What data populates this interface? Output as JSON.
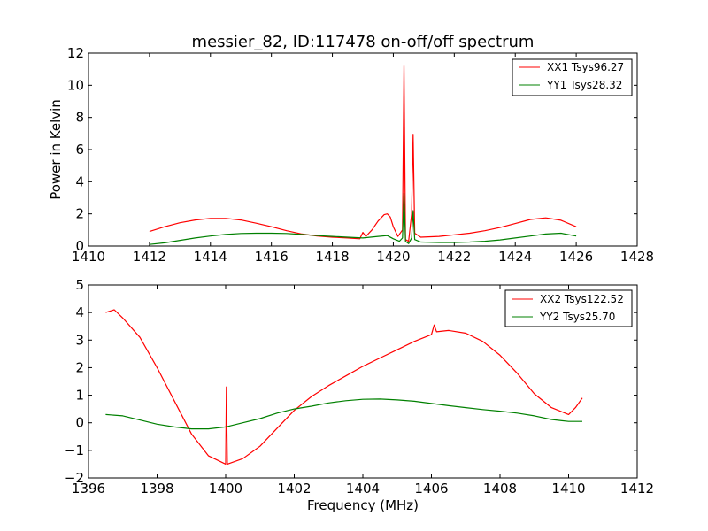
{
  "chart_data": [
    {
      "type": "line",
      "title": "messier_82, ID:117478 on-off/off spectrum",
      "xlabel": "",
      "ylabel": "Power in Kelvin",
      "xlim": [
        1410,
        1428
      ],
      "ylim": [
        0,
        12
      ],
      "xticks": [
        1410,
        1412,
        1414,
        1416,
        1418,
        1420,
        1422,
        1424,
        1426,
        1428
      ],
      "yticks": [
        0,
        2,
        4,
        6,
        8,
        10,
        12
      ],
      "grid": false,
      "legend": "top-right",
      "series": [
        {
          "name": "XX1 Tsys96.27",
          "color": "#ff0000",
          "points": [
            [
              1412.0,
              0.9
            ],
            [
              1412.5,
              1.2
            ],
            [
              1413.0,
              1.45
            ],
            [
              1413.5,
              1.62
            ],
            [
              1414.0,
              1.72
            ],
            [
              1414.5,
              1.72
            ],
            [
              1415.0,
              1.62
            ],
            [
              1415.5,
              1.42
            ],
            [
              1416.0,
              1.2
            ],
            [
              1416.5,
              0.95
            ],
            [
              1417.0,
              0.75
            ],
            [
              1417.5,
              0.62
            ],
            [
              1418.0,
              0.55
            ],
            [
              1418.5,
              0.5
            ],
            [
              1418.9,
              0.45
            ],
            [
              1419.0,
              0.85
            ],
            [
              1419.1,
              0.6
            ],
            [
              1419.3,
              1.0
            ],
            [
              1419.5,
              1.55
            ],
            [
              1419.7,
              1.95
            ],
            [
              1419.8,
              2.0
            ],
            [
              1419.9,
              1.8
            ],
            [
              1420.0,
              1.2
            ],
            [
              1420.15,
              0.6
            ],
            [
              1420.3,
              1.0
            ],
            [
              1420.35,
              11.2
            ],
            [
              1420.4,
              0.4
            ],
            [
              1420.5,
              0.3
            ],
            [
              1420.6,
              2.0
            ],
            [
              1420.65,
              6.95
            ],
            [
              1420.7,
              0.8
            ],
            [
              1420.9,
              0.55
            ],
            [
              1421.5,
              0.6
            ],
            [
              1422.0,
              0.7
            ],
            [
              1422.5,
              0.8
            ],
            [
              1423.0,
              0.95
            ],
            [
              1423.5,
              1.15
            ],
            [
              1424.0,
              1.4
            ],
            [
              1424.5,
              1.65
            ],
            [
              1425.0,
              1.75
            ],
            [
              1425.5,
              1.6
            ],
            [
              1426.0,
              1.2
            ]
          ]
        },
        {
          "name": "YY1 Tsys28.32",
          "color": "#008000",
          "points": [
            [
              1412.0,
              0.1
            ],
            [
              1412.5,
              0.2
            ],
            [
              1413.0,
              0.35
            ],
            [
              1413.5,
              0.5
            ],
            [
              1414.0,
              0.62
            ],
            [
              1414.5,
              0.72
            ],
            [
              1415.0,
              0.78
            ],
            [
              1415.5,
              0.8
            ],
            [
              1416.0,
              0.8
            ],
            [
              1416.5,
              0.78
            ],
            [
              1417.0,
              0.72
            ],
            [
              1417.5,
              0.65
            ],
            [
              1418.0,
              0.6
            ],
            [
              1418.5,
              0.55
            ],
            [
              1419.0,
              0.5
            ],
            [
              1419.5,
              0.6
            ],
            [
              1419.8,
              0.65
            ],
            [
              1420.0,
              0.45
            ],
            [
              1420.2,
              0.3
            ],
            [
              1420.3,
              0.5
            ],
            [
              1420.35,
              3.3
            ],
            [
              1420.4,
              0.3
            ],
            [
              1420.5,
              0.15
            ],
            [
              1420.6,
              0.5
            ],
            [
              1420.65,
              2.2
            ],
            [
              1420.7,
              0.4
            ],
            [
              1420.9,
              0.25
            ],
            [
              1421.5,
              0.22
            ],
            [
              1422.0,
              0.22
            ],
            [
              1422.5,
              0.25
            ],
            [
              1423.0,
              0.3
            ],
            [
              1423.5,
              0.38
            ],
            [
              1424.0,
              0.5
            ],
            [
              1424.5,
              0.62
            ],
            [
              1425.0,
              0.75
            ],
            [
              1425.5,
              0.8
            ],
            [
              1426.0,
              0.62
            ]
          ]
        }
      ]
    },
    {
      "type": "line",
      "title": "",
      "xlabel": "Frequency (MHz)",
      "ylabel": "",
      "xlim": [
        1396,
        1412
      ],
      "ylim": [
        -2,
        5
      ],
      "xticks": [
        1396,
        1398,
        1400,
        1402,
        1404,
        1406,
        1408,
        1410,
        1412
      ],
      "yticks": [
        -2,
        -1,
        0,
        1,
        2,
        3,
        4,
        5
      ],
      "grid": false,
      "legend": "top-right",
      "series": [
        {
          "name": "XX2 Tsys122.52",
          "color": "#ff0000",
          "points": [
            [
              1396.5,
              4.0
            ],
            [
              1396.75,
              4.1
            ],
            [
              1397.0,
              3.8
            ],
            [
              1397.5,
              3.1
            ],
            [
              1398.0,
              2.0
            ],
            [
              1398.5,
              0.8
            ],
            [
              1399.0,
              -0.4
            ],
            [
              1399.5,
              -1.2
            ],
            [
              1400.0,
              -1.5
            ],
            [
              1400.02,
              1.3
            ],
            [
              1400.05,
              -1.5
            ],
            [
              1400.5,
              -1.3
            ],
            [
              1401.0,
              -0.85
            ],
            [
              1401.5,
              -0.2
            ],
            [
              1402.0,
              0.45
            ],
            [
              1402.5,
              0.95
            ],
            [
              1403.0,
              1.35
            ],
            [
              1403.5,
              1.7
            ],
            [
              1404.0,
              2.05
            ],
            [
              1404.5,
              2.35
            ],
            [
              1405.0,
              2.65
            ],
            [
              1405.5,
              2.95
            ],
            [
              1406.0,
              3.2
            ],
            [
              1406.08,
              3.55
            ],
            [
              1406.15,
              3.3
            ],
            [
              1406.5,
              3.35
            ],
            [
              1407.0,
              3.25
            ],
            [
              1407.5,
              2.95
            ],
            [
              1408.0,
              2.45
            ],
            [
              1408.5,
              1.8
            ],
            [
              1409.0,
              1.05
            ],
            [
              1409.5,
              0.55
            ],
            [
              1410.0,
              0.3
            ],
            [
              1410.2,
              0.55
            ],
            [
              1410.4,
              0.9
            ]
          ]
        },
        {
          "name": "YY2 Tsys25.70",
          "color": "#008000",
          "points": [
            [
              1396.5,
              0.3
            ],
            [
              1397.0,
              0.25
            ],
            [
              1397.5,
              0.1
            ],
            [
              1398.0,
              -0.05
            ],
            [
              1398.5,
              -0.15
            ],
            [
              1399.0,
              -0.22
            ],
            [
              1399.5,
              -0.22
            ],
            [
              1400.0,
              -0.15
            ],
            [
              1400.5,
              0.0
            ],
            [
              1401.0,
              0.15
            ],
            [
              1401.5,
              0.35
            ],
            [
              1402.0,
              0.5
            ],
            [
              1402.5,
              0.6
            ],
            [
              1403.0,
              0.72
            ],
            [
              1403.5,
              0.8
            ],
            [
              1404.0,
              0.85
            ],
            [
              1404.5,
              0.86
            ],
            [
              1405.0,
              0.83
            ],
            [
              1405.5,
              0.78
            ],
            [
              1406.0,
              0.7
            ],
            [
              1406.5,
              0.62
            ],
            [
              1407.0,
              0.55
            ],
            [
              1407.5,
              0.48
            ],
            [
              1408.0,
              0.42
            ],
            [
              1408.5,
              0.35
            ],
            [
              1409.0,
              0.25
            ],
            [
              1409.5,
              0.12
            ],
            [
              1410.0,
              0.05
            ],
            [
              1410.4,
              0.05
            ]
          ]
        }
      ]
    }
  ]
}
